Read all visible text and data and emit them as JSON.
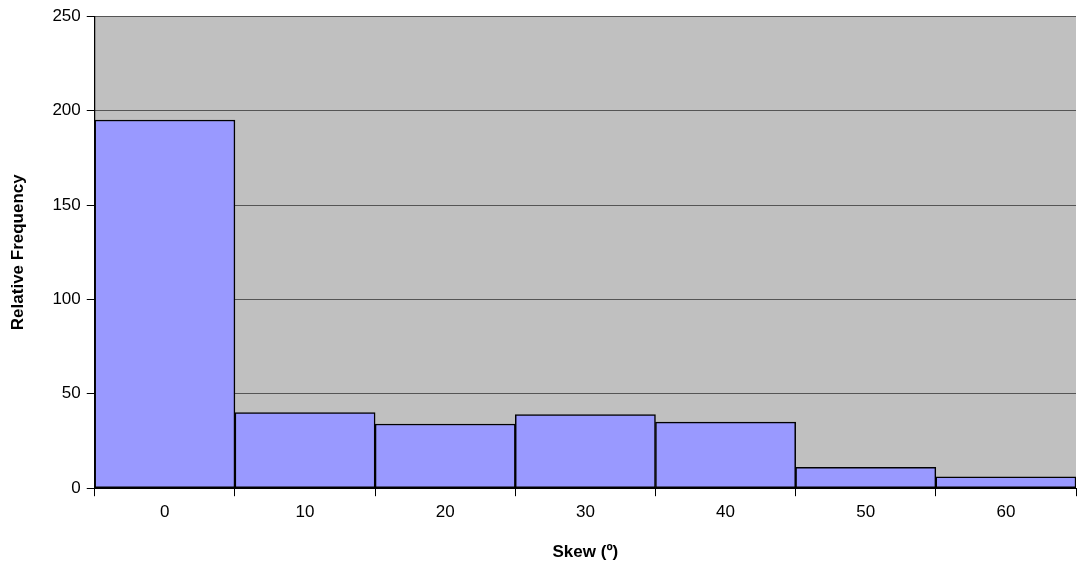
{
  "chart_data": {
    "type": "bar",
    "xlabel": "Skew (º)",
    "ylabel": "Relative Frequency",
    "categories": [
      "0",
      "10",
      "20",
      "30",
      "40",
      "50",
      "60"
    ],
    "values": [
      195,
      40,
      34,
      39,
      35,
      11,
      6
    ],
    "color": "#9999ff",
    "ylim": [
      0,
      250
    ],
    "yticks": [
      0,
      50,
      100,
      150,
      200,
      250
    ],
    "grid": "y",
    "legend": false
  }
}
